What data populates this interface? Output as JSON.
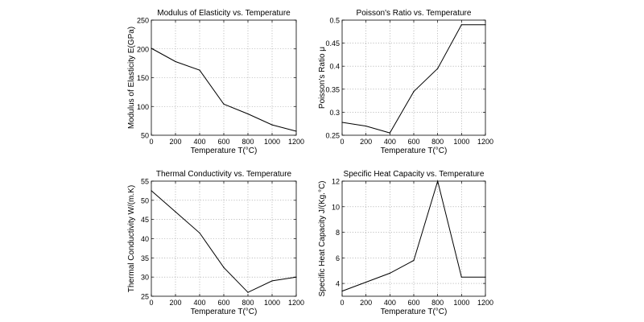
{
  "chart_data": [
    {
      "type": "line",
      "title": "Modulus of Elasticity vs. Temperature",
      "xlabel": "Temperature T(°C)",
      "ylabel": "Modulus of Elasticity E(GPa)",
      "xlim": [
        0,
        1200
      ],
      "ylim": [
        50,
        250
      ],
      "xticks": [
        0,
        200,
        400,
        600,
        800,
        1000,
        1200
      ],
      "yticks": [
        50,
        100,
        150,
        200,
        250
      ],
      "xtick_labels": [
        "0",
        "200",
        "400",
        "600",
        "800",
        "1000",
        "1200"
      ],
      "ytick_labels": [
        "50",
        "100",
        "150",
        "200",
        "250"
      ],
      "grid": true,
      "x": [
        0,
        200,
        400,
        600,
        800,
        1000,
        1200
      ],
      "y": [
        201,
        178,
        163,
        104,
        87,
        68,
        57
      ]
    },
    {
      "type": "line",
      "title": "Poisson's Ratio vs. Temperature",
      "xlabel": "Temperature T(°C)",
      "ylabel": "Poisson's Ratio μ",
      "xlim": [
        0,
        1200
      ],
      "ylim": [
        0.25,
        0.5
      ],
      "xticks": [
        0,
        200,
        400,
        600,
        800,
        1000,
        1200
      ],
      "yticks": [
        0.25,
        0.3,
        0.35,
        0.4,
        0.45,
        0.5
      ],
      "xtick_labels": [
        "0",
        "200",
        "400",
        "600",
        "800",
        "1000",
        "1200"
      ],
      "ytick_labels": [
        "0.25",
        "0.3",
        "0.35",
        "0.4",
        "0.45",
        "0.5"
      ],
      "grid": true,
      "x": [
        0,
        200,
        400,
        600,
        800,
        1000,
        1200
      ],
      "y": [
        0.278,
        0.27,
        0.255,
        0.345,
        0.395,
        0.49,
        0.49
      ]
    },
    {
      "type": "line",
      "title": "Thermal Conductivity vs. Temperature",
      "xlabel": "Temperature T(°C)",
      "ylabel": "Thermal Conductivity W/(m.K)",
      "xlim": [
        0,
        1200
      ],
      "ylim": [
        25,
        55
      ],
      "xticks": [
        0,
        200,
        400,
        600,
        800,
        1000,
        1200
      ],
      "yticks": [
        25,
        30,
        35,
        40,
        45,
        50,
        55
      ],
      "xtick_labels": [
        "0",
        "200",
        "400",
        "600",
        "800",
        "1000",
        "1200"
      ],
      "ytick_labels": [
        "25",
        "30",
        "35",
        "40",
        "45",
        "50",
        "55"
      ],
      "grid": true,
      "x": [
        0,
        200,
        400,
        600,
        800,
        1000,
        1200
      ],
      "y": [
        52.5,
        47,
        41.5,
        32.5,
        26,
        29,
        30
      ]
    },
    {
      "type": "line",
      "title": "Specific Heat Capacity vs. Temperature",
      "xlabel": "Temperature T(°C)",
      "ylabel": "Specific Heat Capacity J/(Kg.°C)",
      "xlim": [
        0,
        1200
      ],
      "ylim": [
        3,
        12
      ],
      "xticks": [
        0,
        200,
        400,
        600,
        800,
        1000,
        1200
      ],
      "yticks": [
        4,
        6,
        8,
        10,
        12
      ],
      "xtick_labels": [
        "0",
        "200",
        "400",
        "600",
        "800",
        "1000",
        "1200"
      ],
      "ytick_labels": [
        "4",
        "6",
        "8",
        "10",
        "12"
      ],
      "grid": true,
      "x": [
        0,
        200,
        400,
        600,
        800,
        1000,
        1200
      ],
      "y": [
        3.4,
        4.1,
        4.8,
        5.8,
        12,
        4.5,
        4.5
      ]
    }
  ]
}
